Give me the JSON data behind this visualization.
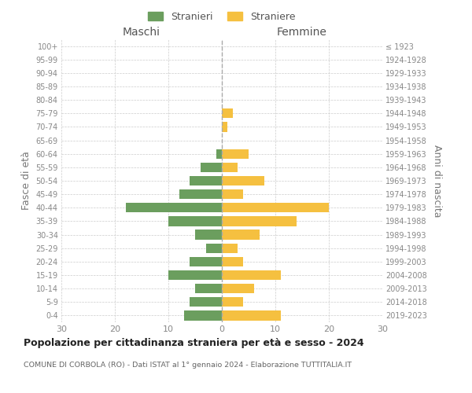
{
  "age_groups_bottom_to_top": [
    "0-4",
    "5-9",
    "10-14",
    "15-19",
    "20-24",
    "25-29",
    "30-34",
    "35-39",
    "40-44",
    "45-49",
    "50-54",
    "55-59",
    "60-64",
    "65-69",
    "70-74",
    "75-79",
    "80-84",
    "85-89",
    "90-94",
    "95-99",
    "100+"
  ],
  "birth_years_bottom_to_top": [
    "2019-2023",
    "2014-2018",
    "2009-2013",
    "2004-2008",
    "1999-2003",
    "1994-1998",
    "1989-1993",
    "1984-1988",
    "1979-1983",
    "1974-1978",
    "1969-1973",
    "1964-1968",
    "1959-1963",
    "1954-1958",
    "1949-1953",
    "1944-1948",
    "1939-1943",
    "1934-1938",
    "1929-1933",
    "1924-1928",
    "≤ 1923"
  ],
  "maschi_bottom_to_top": [
    7,
    6,
    5,
    10,
    6,
    3,
    5,
    10,
    18,
    8,
    6,
    4,
    1,
    0,
    0,
    0,
    0,
    0,
    0,
    0,
    0
  ],
  "femmine_bottom_to_top": [
    11,
    4,
    6,
    11,
    4,
    3,
    7,
    14,
    20,
    4,
    8,
    3,
    5,
    0,
    1,
    2,
    0,
    0,
    0,
    0,
    0
  ],
  "maschi_color": "#6b9e5e",
  "femmine_color": "#f5c040",
  "background_color": "#ffffff",
  "grid_color": "#cccccc",
  "title": "Popolazione per cittadinanza straniera per età e sesso - 2024",
  "subtitle": "COMUNE DI CORBOLA (RO) - Dati ISTAT al 1° gennaio 2024 - Elaborazione TUTTITALIA.IT",
  "xlabel_left": "Maschi",
  "xlabel_right": "Femmine",
  "ylabel_left": "Fasce di età",
  "ylabel_right": "Anni di nascita",
  "legend_stranieri": "Stranieri",
  "legend_straniere": "Straniere",
  "xlim": 30
}
